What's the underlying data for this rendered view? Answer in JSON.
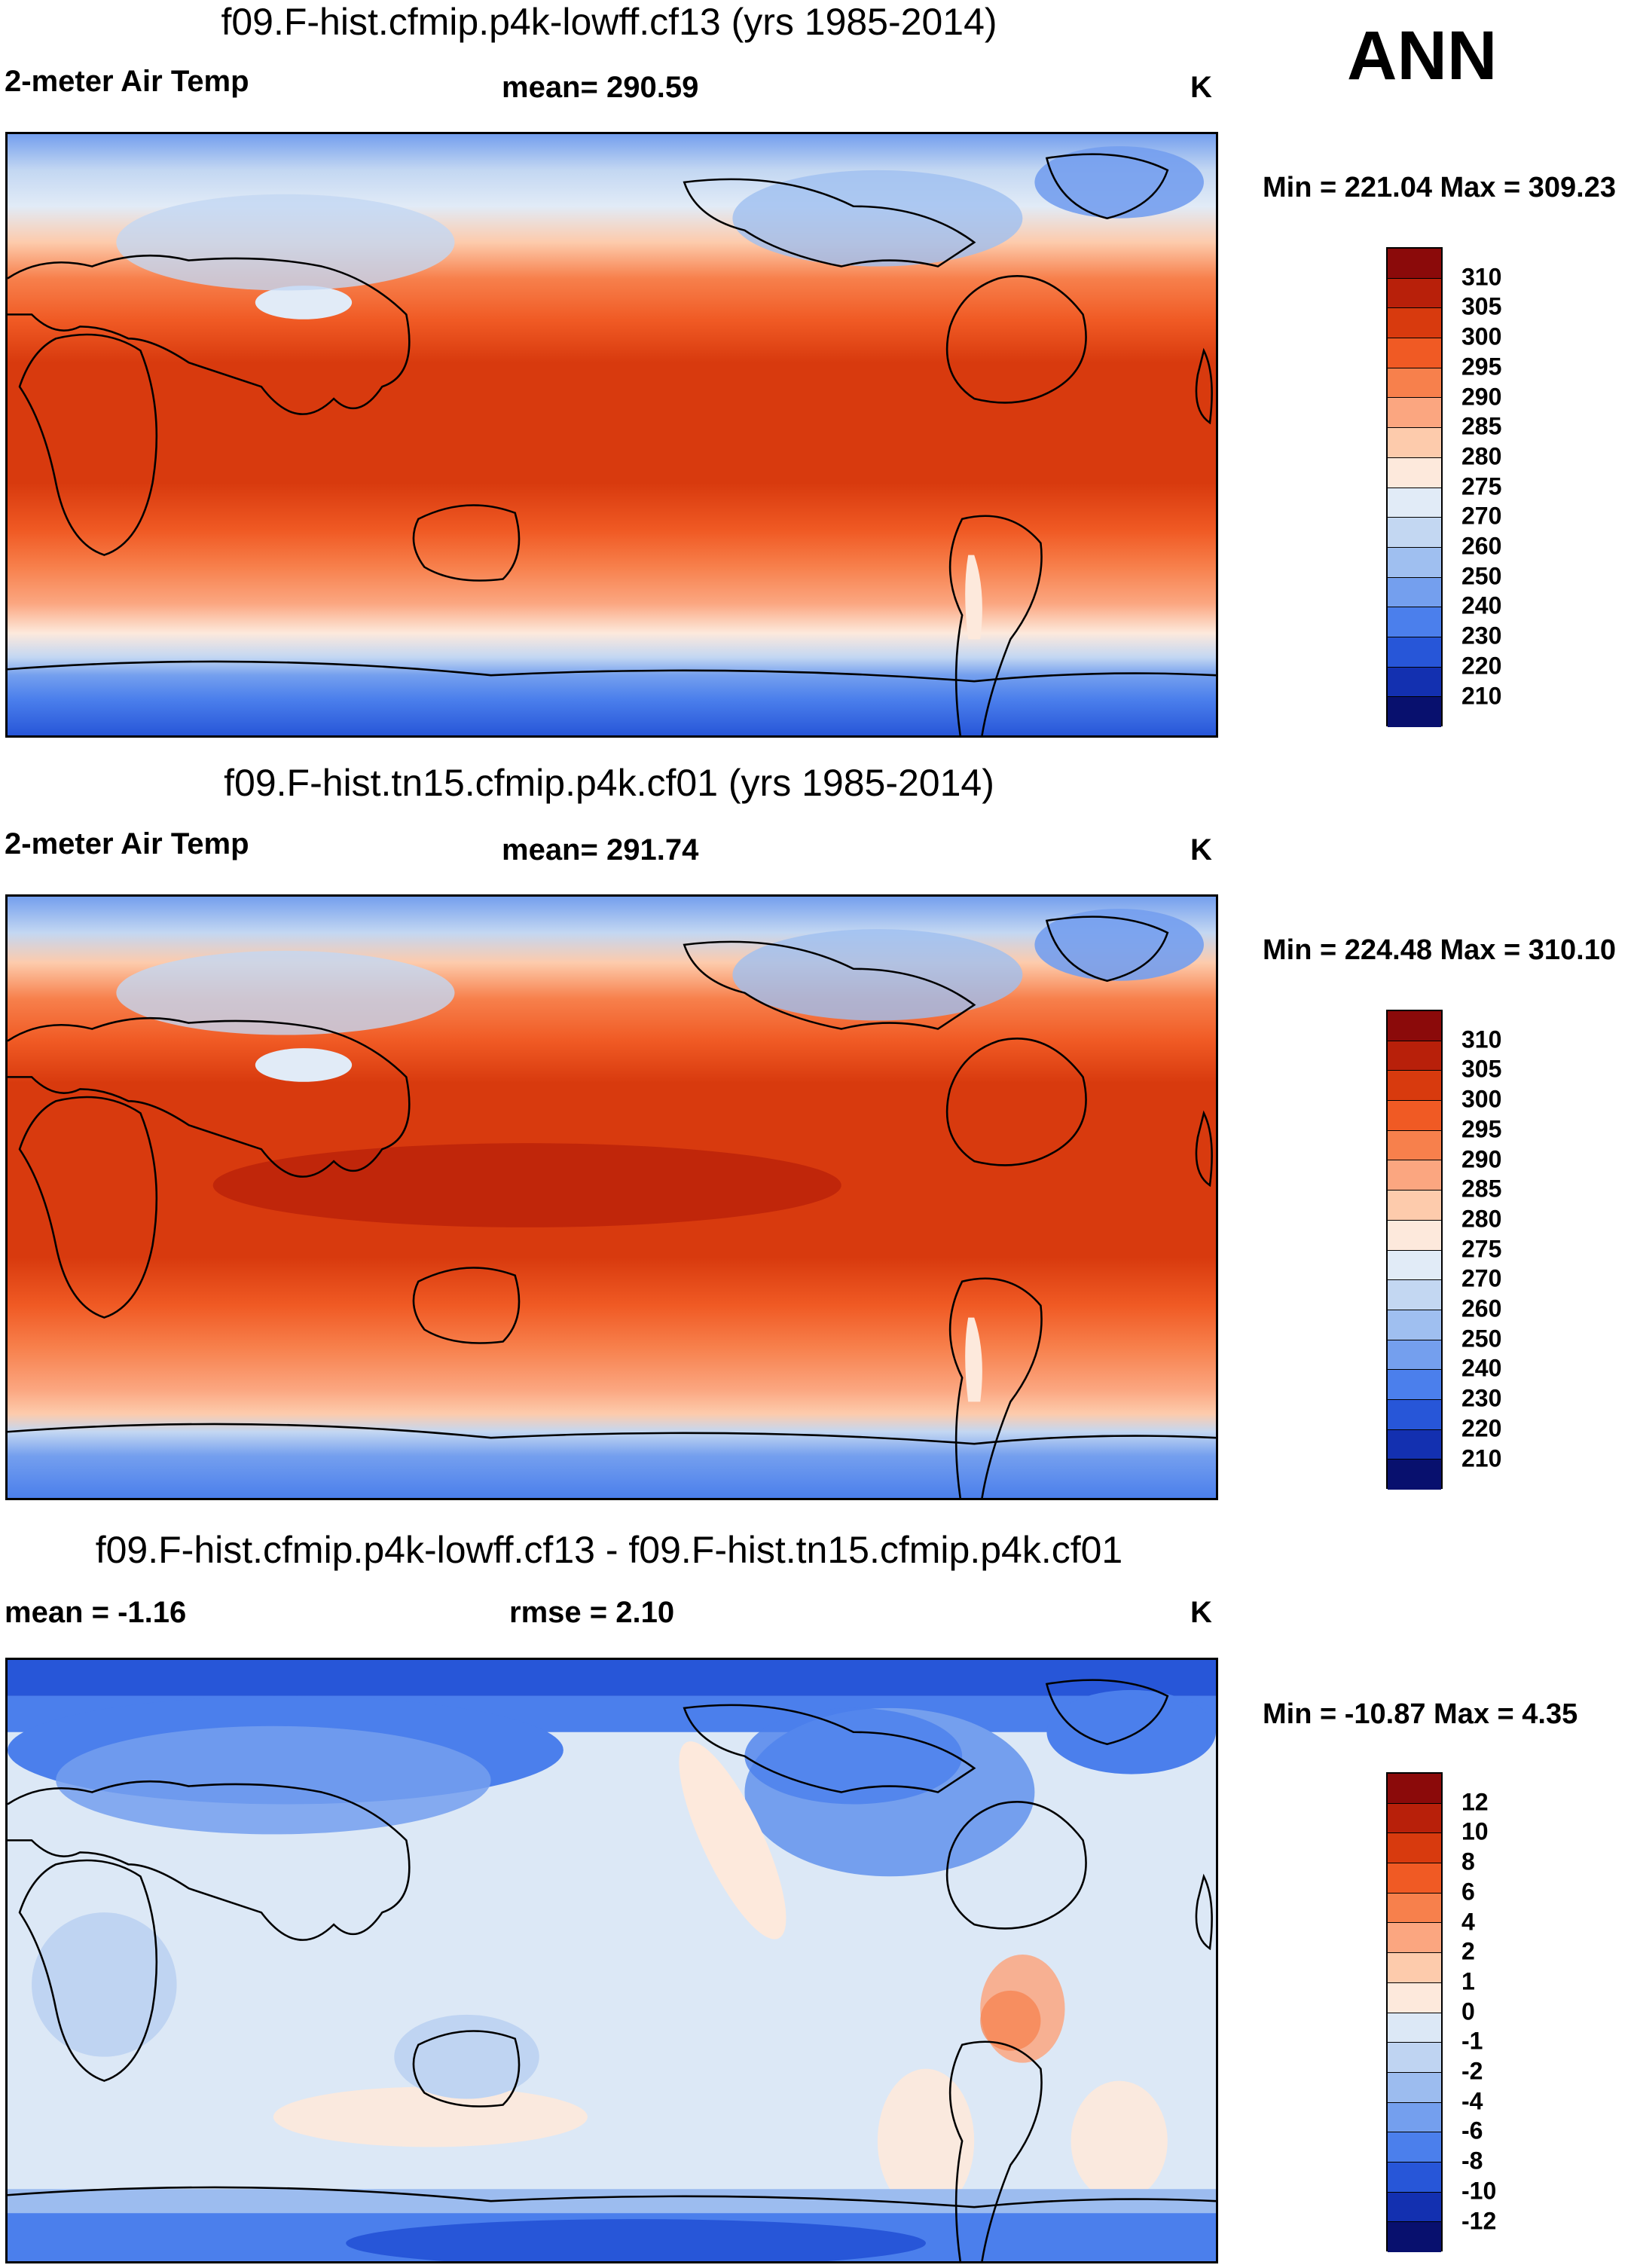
{
  "season": "ANN",
  "units": "K",
  "panels": [
    {
      "title": "f09.F-hist.cfmip.p4k-lowff.cf13 (yrs 1985-2014)",
      "variable": "2-meter Air Temp",
      "stat": "mean= 290.59",
      "minmax": "Min = 221.04 Max = 309.23",
      "colorbar_labels": [
        "310",
        "305",
        "300",
        "295",
        "290",
        "285",
        "280",
        "275",
        "270",
        "260",
        "250",
        "240",
        "230",
        "220",
        "210"
      ]
    },
    {
      "title": "f09.F-hist.tn15.cfmip.p4k.cf01 (yrs 1985-2014)",
      "variable": "2-meter Air Temp",
      "stat": "mean= 291.74",
      "minmax": "Min = 224.48 Max = 310.10",
      "colorbar_labels": [
        "310",
        "305",
        "300",
        "295",
        "290",
        "285",
        "280",
        "275",
        "270",
        "260",
        "250",
        "240",
        "230",
        "220",
        "210"
      ]
    },
    {
      "title": "f09.F-hist.cfmip.p4k-lowff.cf13 - f09.F-hist.tn15.cfmip.p4k.cf01",
      "mean_label": "mean =  -1.16",
      "stat": "rmse =   2.10",
      "minmax": "Min = -10.87 Max =   4.35",
      "colorbar_labels": [
        "12",
        "10",
        "8",
        "6",
        "4",
        "2",
        "1",
        "0",
        "-1",
        "-2",
        "-4",
        "-6",
        "-8",
        "-10",
        "-12"
      ]
    }
  ],
  "colors": {
    "abs_scale": [
      "#8b0a0a",
      "#b8200a",
      "#d83a0e",
      "#f05a24",
      "#f7804c",
      "#fba680",
      "#fdcbac",
      "#fde9dc",
      "#e1ebf7",
      "#c3d7f2",
      "#9fbff0",
      "#749fee",
      "#4b7fec",
      "#2756d8",
      "#1330b0",
      "#08106e"
    ],
    "diff_scale": [
      "#8b0a0a",
      "#b8200a",
      "#d83a0e",
      "#f05a24",
      "#f7804c",
      "#fba680",
      "#fdcbac",
      "#fde9dc",
      "#dce8f6",
      "#bfd4f2",
      "#9cbcef",
      "#749fee",
      "#4b7fec",
      "#2756d8",
      "#1330b0",
      "#08106e"
    ],
    "land_outline": "#000000"
  }
}
